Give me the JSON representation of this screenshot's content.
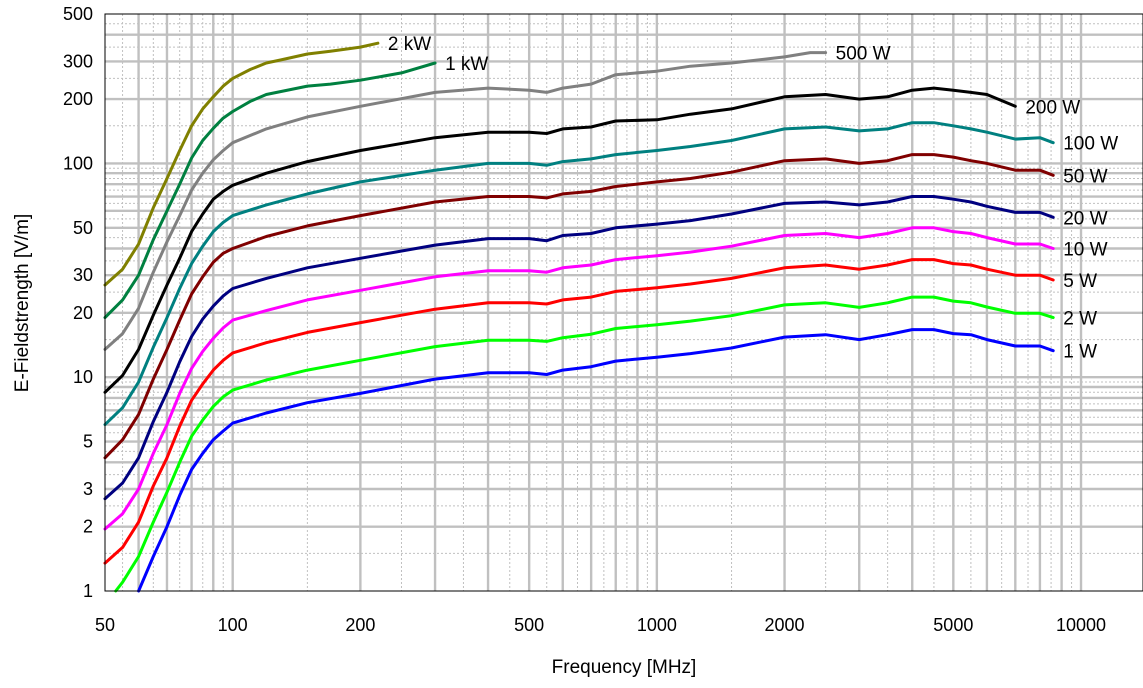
{
  "chart_data": {
    "type": "line",
    "title": "",
    "xlabel": "Frequency [MHz]",
    "ylabel": "E-Fieldstrength [V/m]",
    "xscale": "log",
    "yscale": "log",
    "xlim": [
      50,
      14000
    ],
    "ylim": [
      1,
      500
    ],
    "grid": true,
    "legend": "inline labels at right end of each curve",
    "xticks": [
      50,
      100,
      200,
      500,
      1000,
      2000,
      5000,
      10000
    ],
    "xtick_labels": [
      "50",
      "100",
      "200",
      "500",
      "1000",
      "2000",
      "5000",
      "10000"
    ],
    "yticks": [
      1,
      2,
      3,
      5,
      10,
      20,
      30,
      50,
      100,
      200,
      300,
      500
    ],
    "ytick_labels": [
      "1",
      "2",
      "3",
      "5",
      "10",
      "20",
      "30",
      "50",
      "100",
      "200",
      "300",
      "500"
    ],
    "series": [
      {
        "name": "2 kW",
        "color": "#808000",
        "x": [
          50,
          55,
          60,
          65,
          70,
          75,
          80,
          85,
          90,
          95,
          100,
          110,
          120,
          130,
          150,
          170,
          200,
          220
        ],
        "y": [
          27,
          32,
          42,
          62,
          85,
          115,
          150,
          180,
          205,
          230,
          250,
          275,
          295,
          305,
          325,
          335,
          350,
          365
        ]
      },
      {
        "name": "1 kW",
        "color": "#008040",
        "x": [
          50,
          55,
          60,
          65,
          70,
          75,
          80,
          85,
          90,
          95,
          100,
          110,
          120,
          150,
          170,
          200,
          250,
          300
        ],
        "y": [
          19,
          23,
          30,
          44,
          60,
          80,
          106,
          128,
          146,
          163,
          175,
          195,
          210,
          230,
          235,
          245,
          265,
          295
        ]
      },
      {
        "name": "500 W",
        "color": "#808080",
        "x": [
          50,
          55,
          60,
          65,
          70,
          75,
          80,
          85,
          90,
          95,
          100,
          120,
          150,
          200,
          300,
          400,
          500,
          550,
          600,
          700,
          800,
          1000,
          1200,
          1500,
          2000,
          2300,
          2500
        ],
        "y": [
          13.5,
          16,
          21,
          31,
          43,
          57,
          75,
          90,
          104,
          115,
          125,
          145,
          165,
          185,
          215,
          225,
          220,
          215,
          225,
          235,
          260,
          270,
          285,
          295,
          315,
          330,
          330
        ]
      },
      {
        "name": "200 W",
        "color": "#000000",
        "x": [
          50,
          55,
          60,
          65,
          70,
          75,
          80,
          85,
          90,
          95,
          100,
          120,
          150,
          200,
          300,
          400,
          500,
          550,
          600,
          700,
          800,
          1000,
          1200,
          1500,
          2000,
          2500,
          3000,
          3500,
          4000,
          4500,
          5000,
          5500,
          6000,
          7000
        ],
        "y": [
          8.5,
          10.2,
          13.5,
          19.5,
          27,
          36,
          48,
          58,
          68,
          74,
          79,
          90,
          102,
          115,
          132,
          140,
          140,
          138,
          145,
          148,
          158,
          160,
          170,
          180,
          205,
          210,
          200,
          205,
          220,
          225,
          220,
          215,
          210,
          185
        ]
      },
      {
        "name": "100 W",
        "color": "#008080",
        "x": [
          50,
          55,
          60,
          65,
          70,
          75,
          80,
          85,
          90,
          95,
          100,
          120,
          150,
          200,
          300,
          400,
          500,
          550,
          600,
          700,
          800,
          1000,
          1200,
          1500,
          2000,
          2500,
          3000,
          3500,
          4000,
          4500,
          5000,
          5500,
          6000,
          7000,
          8000,
          8600
        ],
        "y": [
          6,
          7.2,
          9.5,
          13.8,
          19,
          26,
          34,
          41,
          48,
          53,
          57,
          64,
          72,
          82,
          93,
          100,
          100,
          98,
          102,
          105,
          110,
          115,
          120,
          128,
          145,
          148,
          142,
          145,
          155,
          155,
          150,
          145,
          140,
          130,
          132,
          125
        ]
      },
      {
        "name": "50 W",
        "color": "#800000",
        "x": [
          50,
          55,
          60,
          65,
          70,
          75,
          80,
          85,
          90,
          95,
          100,
          120,
          150,
          200,
          300,
          400,
          500,
          550,
          600,
          700,
          800,
          1000,
          1200,
          1500,
          2000,
          2500,
          3000,
          3500,
          4000,
          4500,
          5000,
          5500,
          6000,
          7000,
          8000,
          8600
        ],
        "y": [
          4.2,
          5.1,
          6.7,
          9.8,
          13.5,
          18.5,
          24.5,
          29.5,
          34.5,
          38,
          40,
          45.5,
          51,
          57,
          66,
          70,
          70,
          69,
          72,
          74,
          78,
          82,
          85,
          91,
          103,
          105,
          100,
          103,
          110,
          110,
          107,
          103,
          100,
          93,
          93,
          88
        ]
      },
      {
        "name": "20 W",
        "color": "#000080",
        "x": [
          50,
          55,
          60,
          65,
          70,
          75,
          80,
          85,
          90,
          95,
          100,
          120,
          150,
          200,
          300,
          400,
          500,
          550,
          600,
          700,
          800,
          1000,
          1200,
          1500,
          2000,
          2500,
          3000,
          3500,
          4000,
          4500,
          5000,
          5500,
          6000,
          7000,
          8000,
          8600
        ],
        "y": [
          2.7,
          3.2,
          4.2,
          6.2,
          8.5,
          11.8,
          15.5,
          18.7,
          21.5,
          24,
          26,
          29,
          32.5,
          36,
          41.5,
          44.5,
          44.5,
          43.5,
          46,
          47,
          50,
          52,
          54,
          58,
          65,
          66,
          64,
          66,
          70,
          70,
          68,
          66,
          63,
          59,
          59,
          56
        ]
      },
      {
        "name": "10 W",
        "color": "#ff00ff",
        "x": [
          50,
          55,
          60,
          65,
          70,
          75,
          80,
          85,
          90,
          95,
          100,
          120,
          150,
          200,
          300,
          400,
          500,
          550,
          600,
          700,
          800,
          1000,
          1200,
          1500,
          2000,
          2500,
          3000,
          3500,
          4000,
          4500,
          5000,
          5500,
          6000,
          7000,
          8000,
          8600
        ],
        "y": [
          1.95,
          2.3,
          3,
          4.4,
          6,
          8.4,
          11,
          13.2,
          15.2,
          17,
          18.5,
          20.5,
          23,
          25.5,
          29.5,
          31.5,
          31.5,
          31,
          32.5,
          33.5,
          35.5,
          37,
          38.5,
          41,
          46,
          47,
          45,
          47,
          50,
          50,
          48,
          47,
          45,
          42,
          42,
          40
        ]
      },
      {
        "name": "5 W",
        "color": "#ff0000",
        "x": [
          50,
          55,
          60,
          65,
          70,
          75,
          80,
          85,
          90,
          95,
          100,
          120,
          150,
          200,
          300,
          400,
          500,
          550,
          600,
          700,
          800,
          1000,
          1200,
          1500,
          2000,
          2500,
          3000,
          3500,
          4000,
          4500,
          5000,
          5500,
          6000,
          7000,
          8000,
          8600
        ],
        "y": [
          1.35,
          1.6,
          2.1,
          3.1,
          4.2,
          5.9,
          7.8,
          9.3,
          10.8,
          12,
          13,
          14.5,
          16.2,
          18,
          20.8,
          22.3,
          22.3,
          22,
          23,
          23.7,
          25.2,
          26.2,
          27.3,
          29,
          32.5,
          33.5,
          32,
          33.5,
          35.5,
          35.5,
          34,
          33.5,
          32,
          30,
          30,
          28.5
        ]
      },
      {
        "name": "2 W",
        "color": "#00ff00",
        "x": [
          53,
          55,
          60,
          65,
          70,
          75,
          80,
          85,
          90,
          95,
          100,
          120,
          150,
          200,
          300,
          400,
          500,
          550,
          600,
          700,
          800,
          1000,
          1200,
          1500,
          2000,
          2500,
          3000,
          3500,
          4000,
          4500,
          5000,
          5500,
          6000,
          7000,
          8000,
          8600
        ],
        "y": [
          1,
          1.1,
          1.45,
          2.1,
          2.9,
          4,
          5.3,
          6.3,
          7.3,
          8.1,
          8.7,
          9.7,
          10.8,
          12,
          13.9,
          14.9,
          14.9,
          14.7,
          15.3,
          15.9,
          16.9,
          17.6,
          18.3,
          19.4,
          21.8,
          22.3,
          21.2,
          22.3,
          23.7,
          23.7,
          22.7,
          22.3,
          21.3,
          19.9,
          19.9,
          19
        ]
      },
      {
        "name": "1 W",
        "color": "#0000ff",
        "x": [
          60,
          65,
          70,
          75,
          80,
          85,
          90,
          95,
          100,
          120,
          150,
          200,
          300,
          400,
          500,
          550,
          600,
          700,
          800,
          1000,
          1200,
          1500,
          2000,
          2500,
          3000,
          3500,
          4000,
          4500,
          5000,
          5500,
          6000,
          7000,
          8000,
          8600
        ],
        "y": [
          1,
          1.45,
          2,
          2.8,
          3.7,
          4.4,
          5.1,
          5.6,
          6.1,
          6.8,
          7.6,
          8.4,
          9.8,
          10.5,
          10.5,
          10.3,
          10.8,
          11.2,
          11.9,
          12.4,
          12.9,
          13.7,
          15.4,
          15.8,
          15,
          15.8,
          16.7,
          16.7,
          16,
          15.8,
          15,
          14,
          14,
          13.3
        ]
      }
    ]
  }
}
